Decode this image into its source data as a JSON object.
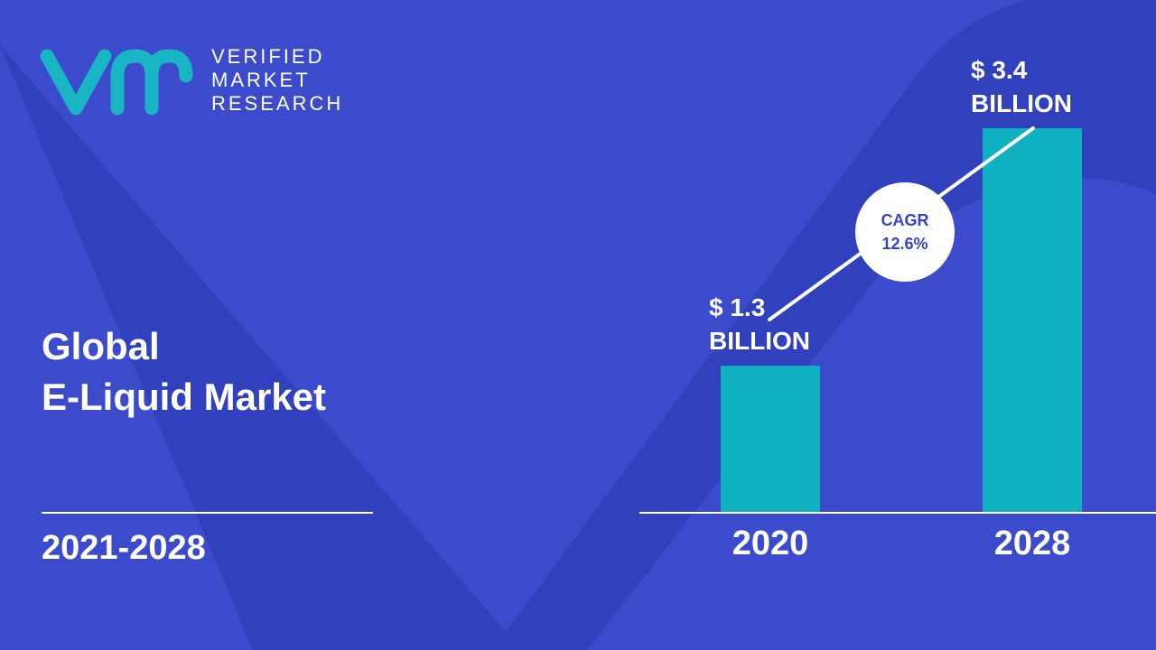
{
  "brand": {
    "line1": "VERIFIED",
    "line2": "MARKET",
    "line3": "RESEARCH",
    "logo_mark": "vmr",
    "logo_color": "#19b5c4"
  },
  "title_line1": "Global",
  "title_line2": "E-Liquid Market",
  "period": "2021-2028",
  "cagr": {
    "label": "CAGR",
    "value": "12.6%"
  },
  "colors": {
    "background": "#3b4bcc",
    "background_shape": "#2f3db8",
    "bar": "#0fb0c0",
    "text": "#ffffff",
    "badge_text": "#3545c2"
  },
  "chart_data": {
    "type": "bar",
    "categories": [
      "2020",
      "2028"
    ],
    "values": [
      1.3,
      3.4
    ],
    "value_labels": [
      [
        "$ 1.3",
        "BILLION"
      ],
      [
        "$ 3.4",
        "BILLION"
      ]
    ],
    "units": "USD billion",
    "ylim": [
      0,
      3.4
    ],
    "grid": false,
    "legend": "none",
    "trend_line": true
  }
}
